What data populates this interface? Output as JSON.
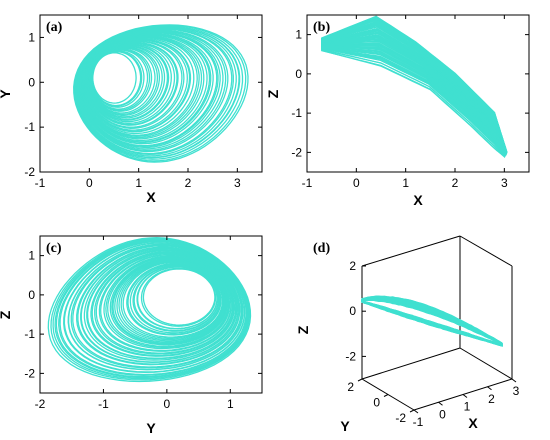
{
  "figure": {
    "trajectory_color": "#40E0D0"
  },
  "chart_data": [
    {
      "type": "line",
      "panel_label": "(a)",
      "xlabel": "X",
      "ylabel": "Y",
      "xlim": [
        -1,
        3.5
      ],
      "ylim": [
        -2,
        1.5
      ],
      "xticks": [
        -1,
        0,
        1,
        2,
        3
      ],
      "yticks": [
        -2,
        -1,
        0,
        1
      ],
      "attractor": {
        "outer_loop": {
          "center": [
            1.45,
            -0.25
          ],
          "x_range": [
            -0.5,
            3.0
          ],
          "y_range": [
            -1.75,
            1.3
          ]
        },
        "inner_hole": {
          "center": [
            0.5,
            0.1
          ],
          "x_range": [
            0.0,
            0.85
          ],
          "y_range": [
            -0.45,
            0.65
          ]
        }
      }
    },
    {
      "type": "line",
      "panel_label": "(b)",
      "xlabel": "X",
      "ylabel": "Z",
      "xlim": [
        -1,
        3.5
      ],
      "ylim": [
        -2.5,
        1.5
      ],
      "xticks": [
        -1,
        0,
        1,
        2,
        3
      ],
      "yticks": [
        -2,
        -1,
        0,
        1
      ],
      "attractor": {
        "x_range": [
          -0.75,
          3.1
        ],
        "z_range": [
          -2.1,
          1.45
        ],
        "upper_edge": [
          [
            -0.7,
            0.9
          ],
          [
            0.4,
            1.45
          ],
          [
            1.2,
            0.8
          ],
          [
            2.0,
            0.0
          ],
          [
            2.8,
            -1.0
          ],
          [
            3.05,
            -2.0
          ]
        ],
        "lower_edge": [
          [
            -0.7,
            0.6
          ],
          [
            0.5,
            0.2
          ],
          [
            1.5,
            -0.4
          ],
          [
            2.3,
            -1.3
          ],
          [
            2.8,
            -1.9
          ],
          [
            3.0,
            -2.1
          ]
        ]
      }
    },
    {
      "type": "line",
      "panel_label": "(c)",
      "xlabel": "Y",
      "ylabel": "Z",
      "xlim": [
        -2,
        1.5
      ],
      "ylim": [
        -2.5,
        1.5
      ],
      "xticks": [
        -2,
        -1,
        0,
        1
      ],
      "yticks": [
        -2,
        -1,
        0,
        1
      ],
      "attractor": {
        "outer_loop": {
          "y_range": [
            -1.85,
            1.3
          ],
          "z_range": [
            -2.2,
            1.45
          ]
        },
        "inner_hole": {
          "center": [
            0.2,
            -0.05
          ],
          "y_range": [
            -0.35,
            0.75
          ],
          "z_range": [
            -0.75,
            0.65
          ]
        }
      }
    },
    {
      "type": "line",
      "panel_label": "(d)",
      "projection": "3d",
      "xlabel": "X",
      "ylabel": "Y",
      "zlabel": "Z",
      "xlim": [
        -1,
        3
      ],
      "ylim": [
        -2,
        2
      ],
      "zlim": [
        -3,
        2
      ],
      "xticks": [
        -1,
        0,
        1,
        2,
        3
      ],
      "yticks": [
        -2,
        0,
        2
      ],
      "zticks": [
        -2,
        0,
        2
      ]
    }
  ]
}
